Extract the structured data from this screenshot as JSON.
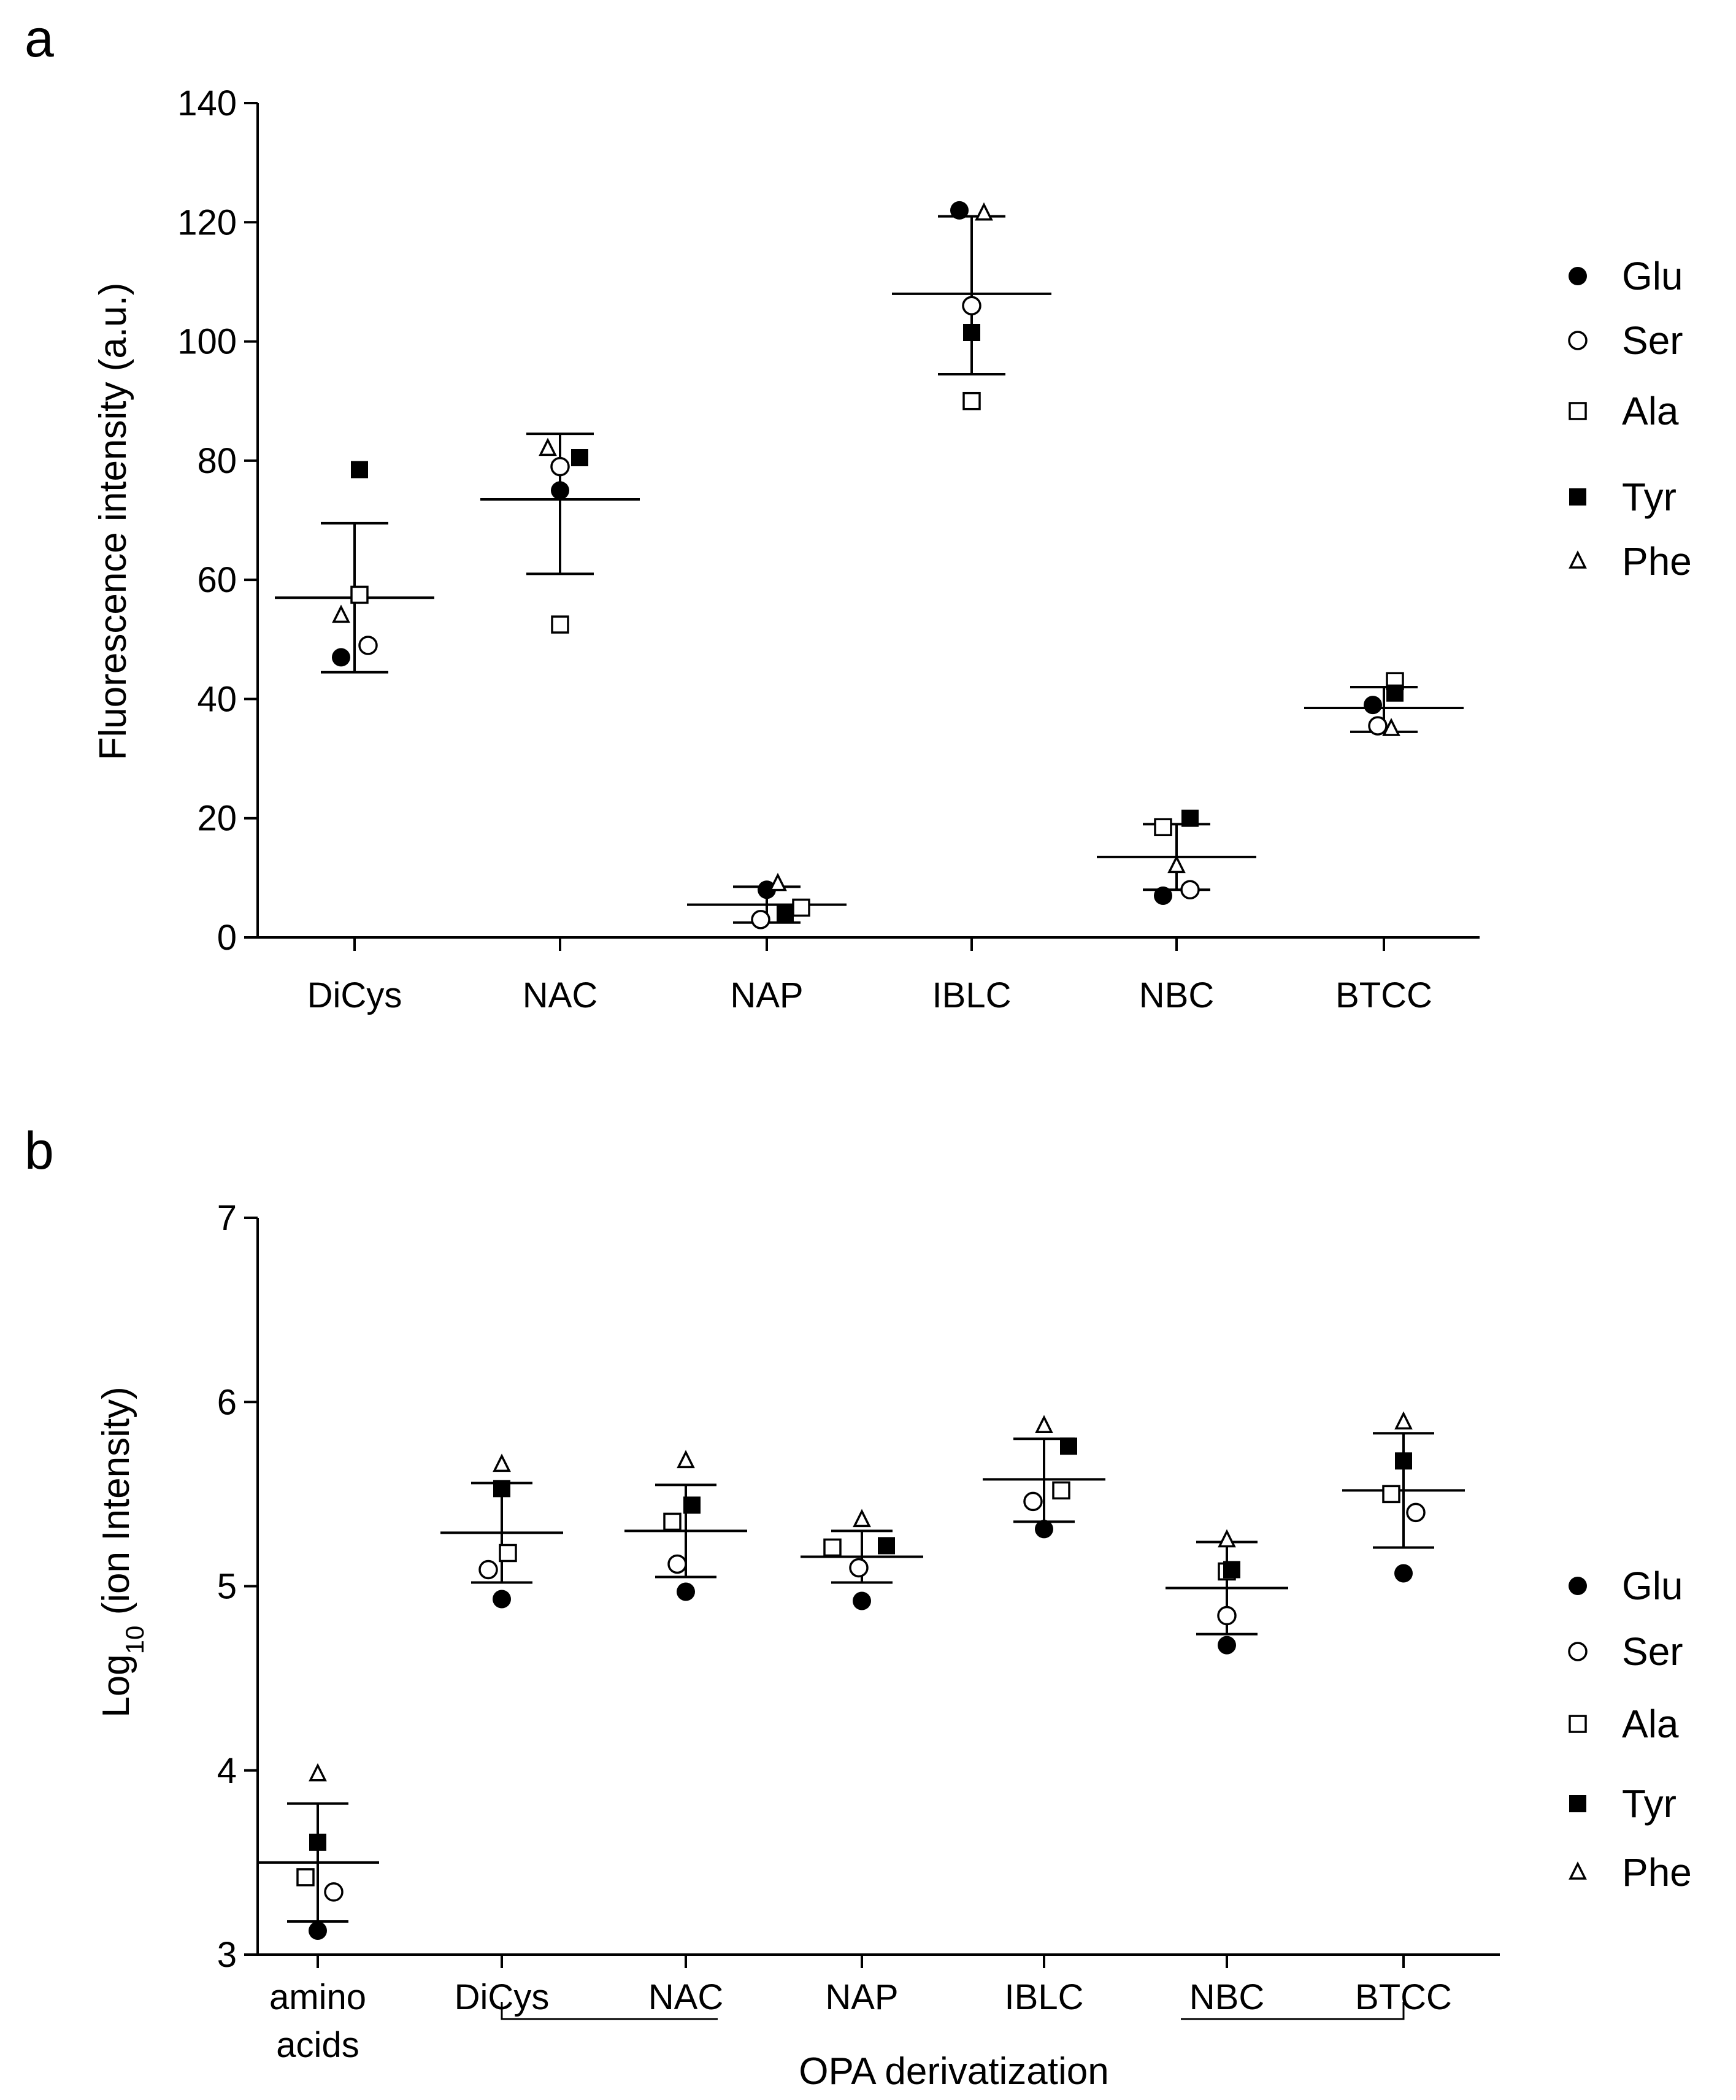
{
  "chart_data": [
    {
      "panel_label": "a",
      "type": "scatter",
      "title": "",
      "xlabel": "",
      "ylabel": "Fluorescence  intensity (a.u.)",
      "ylim": [
        0,
        140
      ],
      "yticks": [
        0,
        20,
        40,
        60,
        80,
        100,
        120,
        140
      ],
      "categories": [
        "DiCys",
        "NAC",
        "NAP",
        "IBLC",
        "NBC",
        "BTCC"
      ],
      "legend_position": "right",
      "series": [
        {
          "name": "Glu",
          "marker": "filled-circle",
          "values": [
            47,
            75,
            8,
            122,
            7,
            39
          ]
        },
        {
          "name": "Ser",
          "marker": "open-circle",
          "values": [
            49,
            79,
            3,
            106,
            8,
            35.5
          ]
        },
        {
          "name": "Ala",
          "marker": "open-square",
          "values": [
            57.5,
            52.5,
            5,
            90,
            18.5,
            43
          ]
        },
        {
          "name": "Tyr",
          "marker": "filled-square",
          "values": [
            78.5,
            80.5,
            4,
            101.5,
            20,
            41
          ]
        },
        {
          "name": "Phe",
          "marker": "open-triangle",
          "values": [
            54,
            82,
            9,
            121.5,
            12,
            35
          ]
        }
      ],
      "summary": {
        "mean": [
          57,
          73.5,
          5.5,
          108,
          13.5,
          38.5
        ],
        "sd_upper": [
          69.5,
          84.5,
          8.5,
          121,
          19,
          42
        ],
        "sd_lower": [
          44.5,
          61,
          2.5,
          94.5,
          8,
          34.5
        ]
      }
    },
    {
      "panel_label": "b",
      "type": "scatter",
      "title": "",
      "xlabel": "OPA derivatization",
      "ylabel_main": "Log",
      "ylabel_sub": "10",
      "ylabel_rest": " (ion Intensity)",
      "ylim": [
        3,
        7
      ],
      "yticks": [
        3,
        4,
        5,
        6,
        7
      ],
      "categories": [
        "amino acids",
        "DiCys",
        "NAC",
        "NAP",
        "IBLC",
        "NBC",
        "BTCC"
      ],
      "category_lines": [
        [
          "amino",
          "acids"
        ],
        [
          "DiCys"
        ],
        [
          "NAC"
        ],
        [
          "NAP"
        ],
        [
          "IBLC"
        ],
        [
          "NBC"
        ],
        [
          "BTCC"
        ]
      ],
      "bracket_label": "OPA derivatization",
      "legend_position": "right",
      "series": [
        {
          "name": "Glu",
          "marker": "filled-circle",
          "values": [
            3.13,
            4.93,
            4.97,
            4.92,
            5.31,
            4.68,
            5.07
          ]
        },
        {
          "name": "Ser",
          "marker": "open-circle",
          "values": [
            3.34,
            5.09,
            5.12,
            5.1,
            5.46,
            4.84,
            5.4
          ]
        },
        {
          "name": "Ala",
          "marker": "open-square",
          "values": [
            3.42,
            5.18,
            5.35,
            5.21,
            5.52,
            5.08,
            5.5
          ]
        },
        {
          "name": "Tyr",
          "marker": "filled-square",
          "values": [
            3.61,
            5.53,
            5.44,
            5.22,
            5.76,
            5.09,
            5.68
          ]
        },
        {
          "name": "Phe",
          "marker": "open-triangle",
          "values": [
            3.98,
            5.66,
            5.68,
            5.36,
            5.87,
            5.25,
            5.89
          ]
        }
      ],
      "summary": {
        "mean": [
          3.5,
          5.29,
          5.3,
          5.16,
          5.58,
          4.99,
          5.52
        ],
        "sd_upper": [
          3.82,
          5.56,
          5.55,
          5.3,
          5.8,
          5.24,
          5.83
        ],
        "sd_lower": [
          3.18,
          5.02,
          5.05,
          5.02,
          5.35,
          4.74,
          5.21
        ]
      }
    }
  ]
}
